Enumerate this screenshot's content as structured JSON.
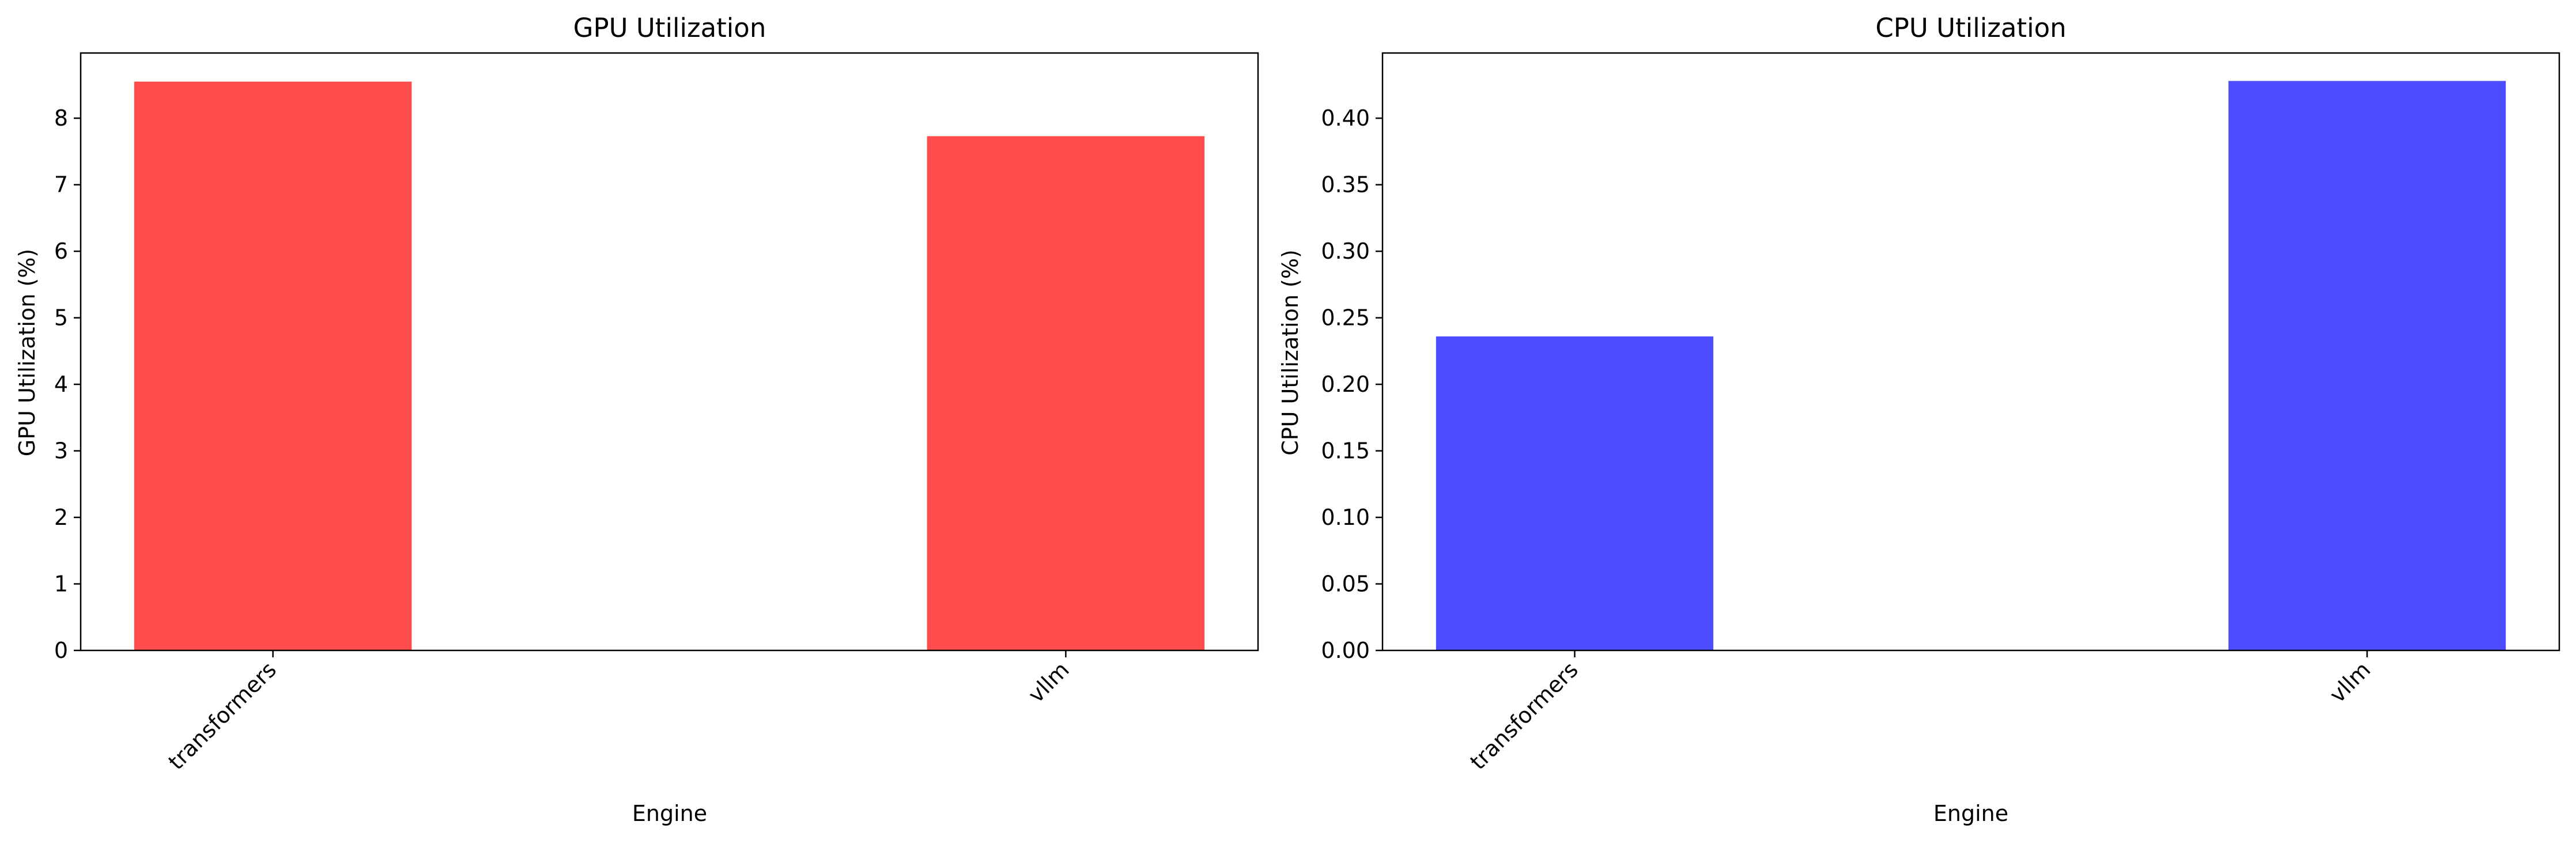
{
  "chart_data": [
    {
      "type": "bar",
      "title": "GPU Utilization",
      "xlabel": "Engine",
      "ylabel": "GPU Utilization (%)",
      "categories": [
        "transformers",
        "vllm"
      ],
      "values": [
        8.55,
        7.73
      ],
      "ylim": [
        0,
        8.98
      ],
      "yticks": [
        0,
        1,
        2,
        3,
        4,
        5,
        6,
        7,
        8
      ],
      "ytick_labels": [
        "0",
        "1",
        "2",
        "3",
        "4",
        "5",
        "6",
        "7",
        "8"
      ],
      "color": "#ff4d4d",
      "grid": false
    },
    {
      "type": "bar",
      "title": "CPU Utilization",
      "xlabel": "Engine",
      "ylabel": "CPU Utilization (%)",
      "categories": [
        "transformers",
        "vllm"
      ],
      "values": [
        0.236,
        0.428
      ],
      "ylim": [
        0,
        0.449
      ],
      "yticks": [
        0,
        0.05,
        0.1,
        0.15,
        0.2,
        0.25,
        0.3,
        0.35,
        0.4
      ],
      "ytick_labels": [
        "0.00",
        "0.05",
        "0.10",
        "0.15",
        "0.20",
        "0.25",
        "0.30",
        "0.35",
        "0.40"
      ],
      "color": "#4d4dff",
      "grid": false
    }
  ]
}
